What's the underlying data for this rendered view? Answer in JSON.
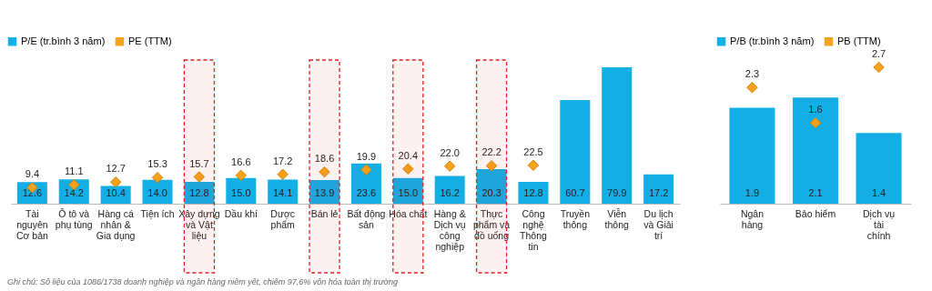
{
  "chart_data": [
    {
      "type": "bar",
      "categories": [
        "Tài nguyên Cơ bản",
        "Ô tô và phụ tùng",
        "Hàng cá nhân & Gia dụng",
        "Tiện ích",
        "Xây dựng và Vật liệu",
        "Dầu khí",
        "Dược phẩm",
        "Bán lẻ",
        "Bất động sản",
        "Hóa chất",
        "Hàng & Dịch vụ công nghiệp",
        "Thực phẩm và đồ uống",
        "Công nghệ Thông tin",
        "Truyền thông",
        "Viễn thông",
        "Du lịch và Giải trí"
      ],
      "series": [
        {
          "name": "P/E (tr.bình 3 năm)",
          "color": "#14aee6",
          "values": [
            12.6,
            14.2,
            10.4,
            14.0,
            12.8,
            15.0,
            14.1,
            13.9,
            23.6,
            15.0,
            16.2,
            20.3,
            12.8,
            60.7,
            79.9,
            17.2
          ],
          "value_labels": [
            "12.6",
            "14.2",
            "10.4",
            "14.0",
            "12.8",
            "15.0",
            "14.1",
            "13.9",
            "23.6",
            "15.0",
            "16.2",
            "20.3",
            "12.8",
            "60.7",
            "79.9",
            "17.2"
          ]
        },
        {
          "name": "PE (TTM)",
          "type": "scatter",
          "color": "#f7a21b",
          "values": [
            9.4,
            11.1,
            12.7,
            15.3,
            15.7,
            16.6,
            17.2,
            18.6,
            19.9,
            20.4,
            22.0,
            22.2,
            22.5,
            null,
            null,
            null
          ],
          "value_labels": [
            "9.4",
            "11.1",
            "12.7",
            "15.3",
            "15.7",
            "16.6",
            "17.2",
            "18.6",
            "19.9",
            "20.4",
            "22.0",
            "22.2",
            "22.5",
            null,
            null,
            null
          ]
        }
      ],
      "marker": "diamond",
      "legend": "top left",
      "tick_labels": "x",
      "bands": [
        {
          "axis": "x",
          "from": "Xây dựng và Vật liệu",
          "to": "Xây dựng và Vật liệu",
          "color": "#e02020"
        },
        {
          "axis": "x",
          "from": "Bán lẻ",
          "to": "Bán lẻ",
          "color": "#e02020"
        },
        {
          "axis": "x",
          "from": "Hóa chất",
          "to": "Hóa chất",
          "color": "#e02020"
        },
        {
          "axis": "x",
          "from": "Thực phẩm và đồ uống",
          "to": "Thực phẩm và đồ uống",
          "color": "#e02020"
        }
      ],
      "annotations": [
        "Ghi chú: Số liệu của 1086/1738 doanh nghiệp và ngân hàng niêm yết, chiếm 97,6% vốn hóa toàn thị trường"
      ]
    },
    {
      "type": "bar",
      "categories": [
        "Ngân hàng",
        "Bảo hiểm",
        "Dịch vụ tài chính"
      ],
      "series": [
        {
          "name": "P/B (tr.bình 3 năm)",
          "color": "#14aee6",
          "values": [
            1.9,
            2.1,
            1.4
          ],
          "value_labels": [
            "1.9",
            "2.1",
            "1.4"
          ]
        },
        {
          "name": "PB (TTM)",
          "type": "scatter",
          "color": "#f7a21b",
          "values": [
            2.3,
            1.6,
            2.7
          ],
          "value_labels": [
            "2.3",
            "1.6",
            "2.7"
          ]
        }
      ],
      "marker": "diamond",
      "legend": "top left",
      "tick_labels": "x"
    }
  ]
}
